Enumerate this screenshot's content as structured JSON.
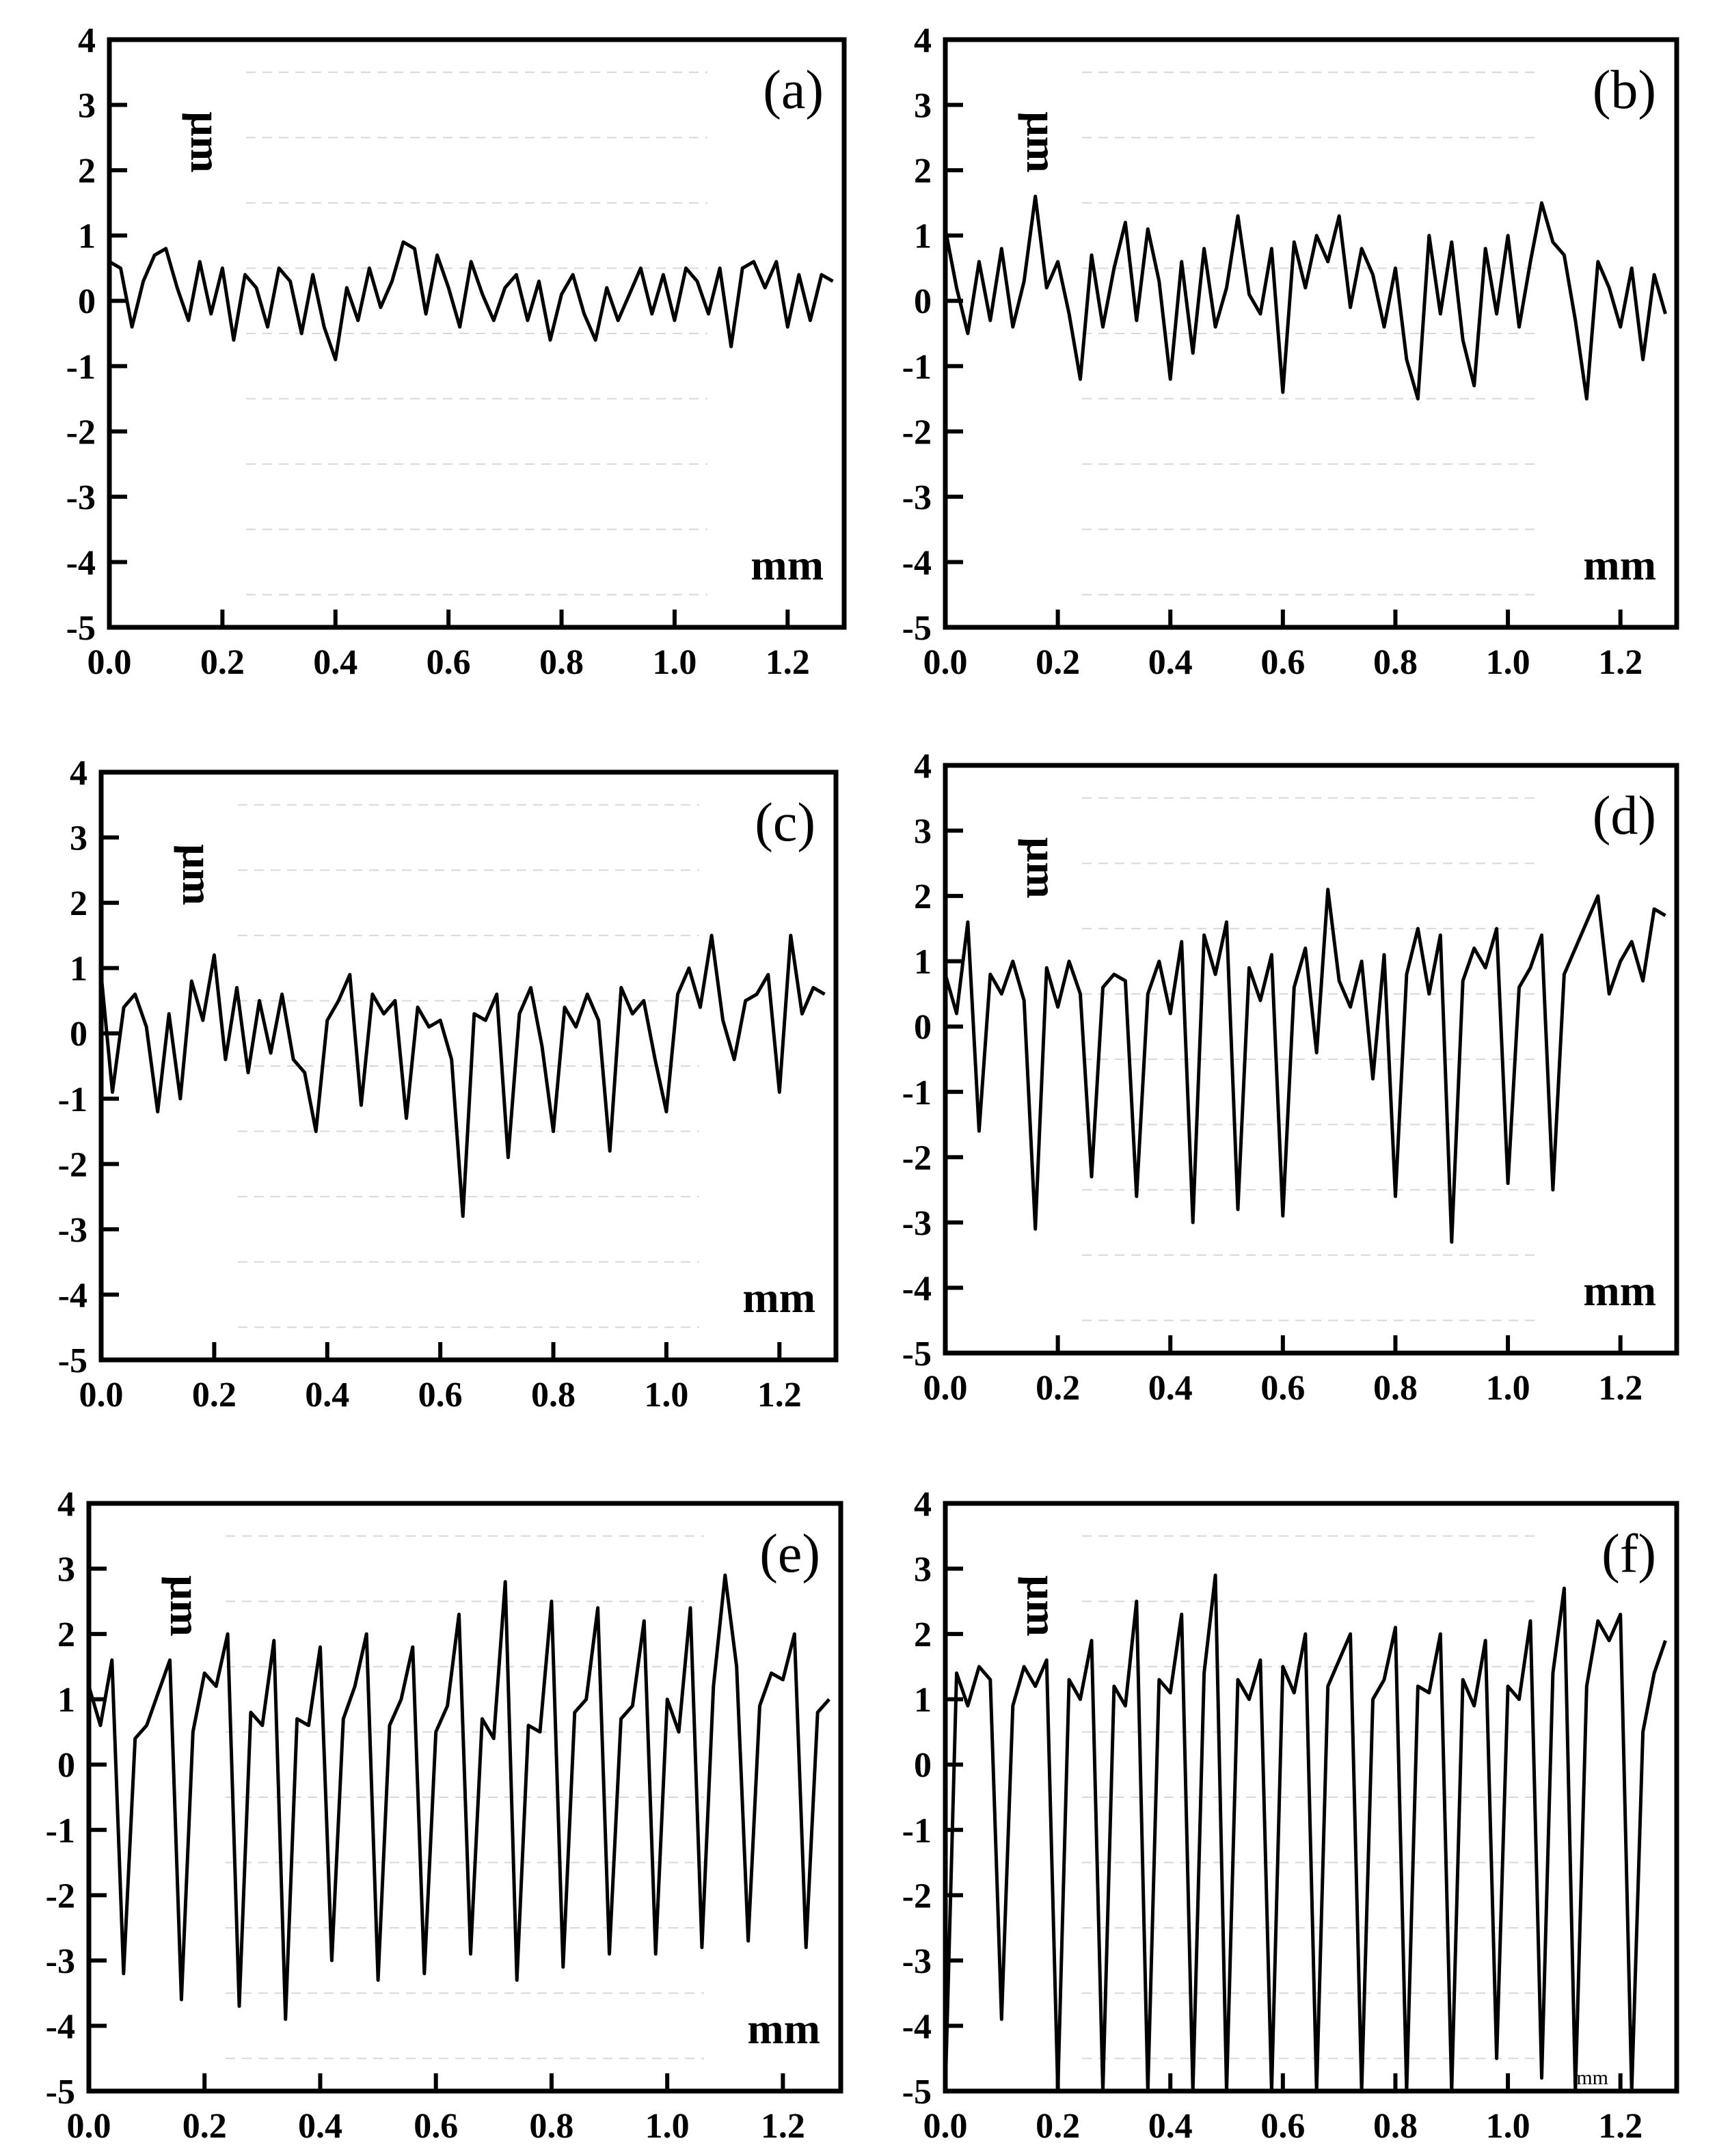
{
  "chart_data": [
    {
      "type": "line",
      "panel_label": "(a)",
      "ylabel": "μm",
      "xlabel": "mm",
      "xlim": [
        0.0,
        1.3
      ],
      "ylim": [
        -5,
        4
      ],
      "xticks": [
        "0.0",
        "0.2",
        "0.4",
        "0.6",
        "0.8",
        "1.0",
        "1.2"
      ],
      "yticks": [
        "4",
        "3",
        "2",
        "1",
        "0",
        "-1",
        "-2",
        "-3",
        "-4",
        "-5"
      ],
      "grid": true,
      "x": [
        0.0,
        0.02,
        0.04,
        0.06,
        0.08,
        0.1,
        0.12,
        0.14,
        0.16,
        0.18,
        0.2,
        0.22,
        0.24,
        0.26,
        0.28,
        0.3,
        0.32,
        0.34,
        0.36,
        0.38,
        0.4,
        0.42,
        0.44,
        0.46,
        0.48,
        0.5,
        0.52,
        0.54,
        0.56,
        0.58,
        0.6,
        0.62,
        0.64,
        0.66,
        0.68,
        0.7,
        0.72,
        0.74,
        0.76,
        0.78,
        0.8,
        0.82,
        0.84,
        0.86,
        0.88,
        0.9,
        0.92,
        0.94,
        0.96,
        0.98,
        1.0,
        1.02,
        1.04,
        1.06,
        1.08,
        1.1,
        1.12,
        1.14,
        1.16,
        1.18,
        1.2,
        1.22,
        1.24,
        1.26,
        1.28
      ],
      "y": [
        0.6,
        0.5,
        -0.4,
        0.3,
        0.7,
        0.8,
        0.2,
        -0.3,
        0.6,
        -0.2,
        0.5,
        -0.6,
        0.4,
        0.2,
        -0.4,
        0.5,
        0.3,
        -0.5,
        0.4,
        -0.4,
        -0.9,
        0.2,
        -0.3,
        0.5,
        -0.1,
        0.3,
        0.9,
        0.8,
        -0.2,
        0.7,
        0.2,
        -0.4,
        0.6,
        0.1,
        -0.3,
        0.2,
        0.4,
        -0.3,
        0.3,
        -0.6,
        0.1,
        0.4,
        -0.2,
        -0.6,
        0.2,
        -0.3,
        0.1,
        0.5,
        -0.2,
        0.4,
        -0.3,
        0.5,
        0.3,
        -0.2,
        0.5,
        -0.7,
        0.5,
        0.6,
        0.2,
        0.6,
        -0.4,
        0.4,
        -0.3,
        0.4,
        0.3
      ]
    },
    {
      "type": "line",
      "panel_label": "(b)",
      "ylabel": "μm",
      "xlabel": "mm",
      "xlim": [
        0.0,
        1.3
      ],
      "ylim": [
        -5,
        4
      ],
      "xticks": [
        "0.0",
        "0.2",
        "0.4",
        "0.6",
        "0.8",
        "1.0",
        "1.2"
      ],
      "yticks": [
        "4",
        "3",
        "2",
        "1",
        "0",
        "-1",
        "-2",
        "-3",
        "-4",
        "-5"
      ],
      "grid": true,
      "x": [
        0.0,
        0.02,
        0.04,
        0.06,
        0.08,
        0.1,
        0.12,
        0.14,
        0.16,
        0.18,
        0.2,
        0.22,
        0.24,
        0.26,
        0.28,
        0.3,
        0.32,
        0.34,
        0.36,
        0.38,
        0.4,
        0.42,
        0.44,
        0.46,
        0.48,
        0.5,
        0.52,
        0.54,
        0.56,
        0.58,
        0.6,
        0.62,
        0.64,
        0.66,
        0.68,
        0.7,
        0.72,
        0.74,
        0.76,
        0.78,
        0.8,
        0.82,
        0.84,
        0.86,
        0.88,
        0.9,
        0.92,
        0.94,
        0.96,
        0.98,
        1.0,
        1.02,
        1.04,
        1.06,
        1.08,
        1.1,
        1.12,
        1.14,
        1.16,
        1.18,
        1.2,
        1.22,
        1.24,
        1.26,
        1.28
      ],
      "y": [
        1.1,
        0.2,
        -0.5,
        0.6,
        -0.3,
        0.8,
        -0.4,
        0.3,
        1.6,
        0.2,
        0.6,
        -0.2,
        -1.2,
        0.7,
        -0.4,
        0.5,
        1.2,
        -0.3,
        1.1,
        0.3,
        -1.2,
        0.6,
        -0.8,
        0.8,
        -0.4,
        0.2,
        1.3,
        0.1,
        -0.2,
        0.8,
        -1.4,
        0.9,
        0.2,
        1.0,
        0.6,
        1.3,
        -0.1,
        0.8,
        0.4,
        -0.4,
        0.5,
        -0.9,
        -1.5,
        1.0,
        -0.2,
        0.9,
        -0.6,
        -1.3,
        0.8,
        -0.2,
        1.0,
        -0.4,
        0.6,
        1.5,
        0.9,
        0.7,
        -0.3,
        -1.5,
        0.6,
        0.2,
        -0.4,
        0.5,
        -0.9,
        0.4,
        -0.2
      ]
    },
    {
      "type": "line",
      "panel_label": "(c)",
      "ylabel": "μm",
      "xlabel": "mm",
      "xlim": [
        0.0,
        1.3
      ],
      "ylim": [
        -5,
        4
      ],
      "xticks": [
        "0.0",
        "0.2",
        "0.4",
        "0.6",
        "0.8",
        "1.0",
        "1.2"
      ],
      "yticks": [
        "4",
        "3",
        "2",
        "1",
        "0",
        "-1",
        "-2",
        "-3",
        "-4",
        "-5"
      ],
      "grid": true,
      "x": [
        0.0,
        0.02,
        0.04,
        0.06,
        0.08,
        0.1,
        0.12,
        0.14,
        0.16,
        0.18,
        0.2,
        0.22,
        0.24,
        0.26,
        0.28,
        0.3,
        0.32,
        0.34,
        0.36,
        0.38,
        0.4,
        0.42,
        0.44,
        0.46,
        0.48,
        0.5,
        0.52,
        0.54,
        0.56,
        0.58,
        0.6,
        0.62,
        0.64,
        0.66,
        0.68,
        0.7,
        0.72,
        0.74,
        0.76,
        0.78,
        0.8,
        0.82,
        0.84,
        0.86,
        0.88,
        0.9,
        0.92,
        0.94,
        0.96,
        0.98,
        1.0,
        1.02,
        1.04,
        1.06,
        1.08,
        1.1,
        1.12,
        1.14,
        1.16,
        1.18,
        1.2,
        1.22,
        1.24,
        1.26,
        1.28
      ],
      "y": [
        0.9,
        -0.9,
        0.4,
        0.6,
        0.1,
        -1.2,
        0.3,
        -1.0,
        0.8,
        0.2,
        1.2,
        -0.4,
        0.7,
        -0.6,
        0.5,
        -0.3,
        0.6,
        -0.4,
        -0.6,
        -1.5,
        0.2,
        0.5,
        0.9,
        -1.1,
        0.6,
        0.3,
        0.5,
        -1.3,
        0.4,
        0.1,
        0.2,
        -0.4,
        -2.8,
        0.3,
        0.2,
        0.6,
        -1.9,
        0.3,
        0.7,
        -0.2,
        -1.5,
        0.4,
        0.1,
        0.6,
        0.2,
        -1.8,
        0.7,
        0.3,
        0.5,
        -0.4,
        -1.2,
        0.6,
        1.0,
        0.4,
        1.5,
        0.2,
        -0.4,
        0.5,
        0.6,
        0.9,
        -0.9,
        1.5,
        0.3,
        0.7,
        0.6
      ]
    },
    {
      "type": "line",
      "panel_label": "(d)",
      "ylabel": "μm",
      "xlabel": "mm",
      "xlim": [
        0.0,
        1.3
      ],
      "ylim": [
        -5,
        4
      ],
      "xticks": [
        "0.0",
        "0.2",
        "0.4",
        "0.6",
        "0.8",
        "1.0",
        "1.2"
      ],
      "yticks": [
        "4",
        "3",
        "2",
        "1",
        "0",
        "-1",
        "-2",
        "-3",
        "-4",
        "-5"
      ],
      "grid": true,
      "x": [
        0.0,
        0.02,
        0.04,
        0.06,
        0.08,
        0.1,
        0.12,
        0.14,
        0.16,
        0.18,
        0.2,
        0.22,
        0.24,
        0.26,
        0.28,
        0.3,
        0.32,
        0.34,
        0.36,
        0.38,
        0.4,
        0.42,
        0.44,
        0.46,
        0.48,
        0.5,
        0.52,
        0.54,
        0.56,
        0.58,
        0.6,
        0.62,
        0.64,
        0.66,
        0.68,
        0.7,
        0.72,
        0.74,
        0.76,
        0.78,
        0.8,
        0.82,
        0.84,
        0.86,
        0.88,
        0.9,
        0.92,
        0.94,
        0.96,
        0.98,
        1.0,
        1.02,
        1.04,
        1.06,
        1.08,
        1.1,
        1.12,
        1.14,
        1.16,
        1.18,
        1.2,
        1.22,
        1.24,
        1.26,
        1.28
      ],
      "y": [
        0.8,
        0.2,
        1.6,
        -1.6,
        0.8,
        0.5,
        1.0,
        0.4,
        -3.1,
        0.9,
        0.3,
        1.0,
        0.5,
        -2.3,
        0.6,
        0.8,
        0.7,
        -2.6,
        0.5,
        1.0,
        0.2,
        1.3,
        -3.0,
        1.4,
        0.8,
        1.6,
        -2.8,
        0.9,
        0.4,
        1.1,
        -2.9,
        0.6,
        1.2,
        -0.4,
        2.1,
        0.7,
        0.3,
        1.0,
        -0.8,
        1.1,
        -2.6,
        0.8,
        1.5,
        0.5,
        1.4,
        -3.3,
        0.7,
        1.2,
        0.9,
        1.5,
        -2.4,
        0.6,
        0.9,
        1.4,
        -2.5,
        0.8,
        1.2,
        1.6,
        2.0,
        0.5,
        1.0,
        1.3,
        0.7,
        1.8,
        1.7
      ]
    },
    {
      "type": "line",
      "panel_label": "(e)",
      "ylabel": "μm",
      "xlabel": "mm",
      "xlim": [
        0.0,
        1.3
      ],
      "ylim": [
        -5,
        4
      ],
      "xticks": [
        "0.0",
        "0.2",
        "0.4",
        "0.6",
        "0.8",
        "1.0",
        "1.2"
      ],
      "yticks": [
        "4",
        "3",
        "2",
        "1",
        "0",
        "-1",
        "-2",
        "-3",
        "-4",
        "-5"
      ],
      "grid": true,
      "x": [
        0.0,
        0.02,
        0.04,
        0.06,
        0.08,
        0.1,
        0.12,
        0.14,
        0.16,
        0.18,
        0.2,
        0.22,
        0.24,
        0.26,
        0.28,
        0.3,
        0.32,
        0.34,
        0.36,
        0.38,
        0.4,
        0.42,
        0.44,
        0.46,
        0.48,
        0.5,
        0.52,
        0.54,
        0.56,
        0.58,
        0.6,
        0.62,
        0.64,
        0.66,
        0.68,
        0.7,
        0.72,
        0.74,
        0.76,
        0.78,
        0.8,
        0.82,
        0.84,
        0.86,
        0.88,
        0.9,
        0.92,
        0.94,
        0.96,
        0.98,
        1.0,
        1.02,
        1.04,
        1.06,
        1.08,
        1.1,
        1.12,
        1.14,
        1.16,
        1.18,
        1.2,
        1.22,
        1.24,
        1.26,
        1.28
      ],
      "y": [
        1.2,
        0.6,
        1.6,
        -3.2,
        0.4,
        0.6,
        1.1,
        1.6,
        -3.6,
        0.5,
        1.4,
        1.2,
        2.0,
        -3.7,
        0.8,
        0.6,
        1.9,
        -3.9,
        0.7,
        0.6,
        1.8,
        -3.0,
        0.7,
        1.2,
        2.0,
        -3.3,
        0.6,
        1.0,
        1.8,
        -3.2,
        0.5,
        0.9,
        2.3,
        -2.9,
        0.7,
        0.4,
        2.8,
        -3.3,
        0.6,
        0.5,
        2.5,
        -3.1,
        0.8,
        1.0,
        2.4,
        -2.9,
        0.7,
        0.9,
        2.2,
        -2.9,
        1.0,
        0.5,
        2.4,
        -2.8,
        1.2,
        2.9,
        1.5,
        -2.7,
        0.9,
        1.4,
        1.3,
        2.0,
        -2.8,
        0.8,
        1.0
      ]
    },
    {
      "type": "line",
      "panel_label": "(f)",
      "ylabel": "μm",
      "xlabel": "mm",
      "xlim": [
        0.0,
        1.3
      ],
      "ylim": [
        -5,
        4
      ],
      "xticks": [
        "0.0",
        "0.2",
        "0.4",
        "0.6",
        "0.8",
        "1.0",
        "1.2"
      ],
      "yticks": [
        "4",
        "3",
        "2",
        "1",
        "0",
        "-1",
        "-2",
        "-3",
        "-4",
        "-5"
      ],
      "grid": true,
      "x": [
        0.0,
        0.02,
        0.04,
        0.06,
        0.08,
        0.1,
        0.12,
        0.14,
        0.16,
        0.18,
        0.2,
        0.22,
        0.24,
        0.26,
        0.28,
        0.3,
        0.32,
        0.34,
        0.36,
        0.38,
        0.4,
        0.42,
        0.44,
        0.46,
        0.48,
        0.5,
        0.52,
        0.54,
        0.56,
        0.58,
        0.6,
        0.62,
        0.64,
        0.66,
        0.68,
        0.7,
        0.72,
        0.74,
        0.76,
        0.78,
        0.8,
        0.82,
        0.84,
        0.86,
        0.88,
        0.9,
        0.92,
        0.94,
        0.96,
        0.98,
        1.0,
        1.02,
        1.04,
        1.06,
        1.08,
        1.1,
        1.12,
        1.14,
        1.16,
        1.18,
        1.2,
        1.22,
        1.24,
        1.26,
        1.28
      ],
      "y": [
        -5.0,
        1.4,
        0.9,
        1.5,
        1.3,
        -3.9,
        0.9,
        1.5,
        1.2,
        1.6,
        -5.0,
        1.3,
        1.0,
        1.9,
        -5.0,
        1.2,
        0.9,
        2.5,
        -5.0,
        1.3,
        1.1,
        2.3,
        -5.0,
        1.4,
        2.9,
        -5.0,
        1.3,
        1.0,
        1.6,
        -5.0,
        1.5,
        1.1,
        2.0,
        -5.0,
        1.2,
        1.6,
        2.0,
        -5.0,
        1.0,
        1.3,
        2.1,
        -5.0,
        1.2,
        1.1,
        2.0,
        -5.0,
        1.3,
        0.9,
        1.9,
        -4.5,
        1.2,
        1.0,
        2.2,
        -4.8,
        1.4,
        2.7,
        -5.0,
        1.2,
        2.2,
        1.9,
        2.3,
        -5.0,
        0.5,
        1.4,
        1.9
      ]
    }
  ],
  "mm_small_label": "mm"
}
